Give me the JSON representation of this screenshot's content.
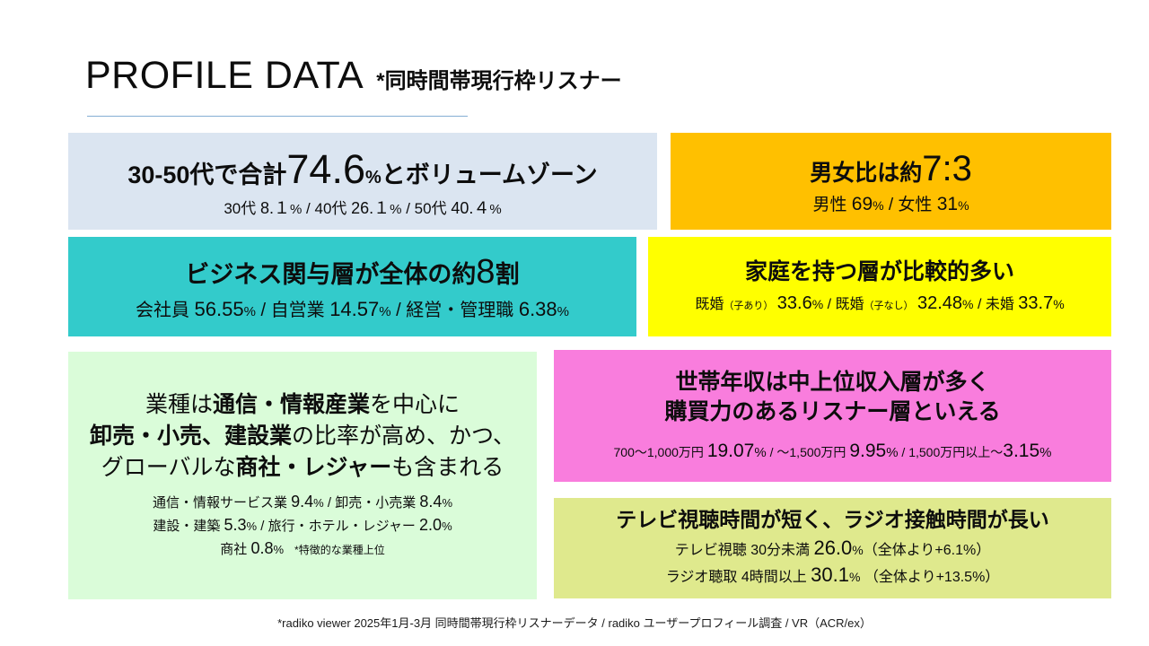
{
  "slide": {
    "title": "PROFILE DATA",
    "title_note": "*同時間帯現行枠リスナー",
    "footer": "*radiko viewer 2025年1月-3月 同時間帯現行枠リスナーデータ / radiko ユーザープロフィール調査 / VR（ACR/ex）"
  },
  "colors": {
    "age_bg": "#dbe5f1",
    "gender_bg": "#ffc000",
    "business_bg": "#33cbcb",
    "family_bg": "#ffff00",
    "industry_bg": "#dafcd9",
    "income_bg": "#f97ddd",
    "media_bg": "#dfe98d",
    "underline": "#85afd4",
    "text": "#0d0d0d"
  },
  "cards": {
    "age": {
      "pre": "30-50代で合計",
      "big": "74.6",
      "unit": "%",
      "post": "とボリュームゾーン",
      "sub": [
        {
          "t": "30代 "
        },
        {
          "t": "8.１"
        },
        {
          "t": "%"
        },
        {
          "t": " / "
        },
        {
          "t": "40代 "
        },
        {
          "t": "26.１"
        },
        {
          "t": "%"
        },
        {
          "t": " / "
        },
        {
          "t": "50代 "
        },
        {
          "t": "40.４"
        },
        {
          "t": "%"
        }
      ]
    },
    "gender": {
      "pre": "男女比は約",
      "big": "7:3",
      "sub": [
        {
          "t": "男性 "
        },
        {
          "t": "69"
        },
        {
          "t": "%"
        },
        {
          "t": " / "
        },
        {
          "t": "女性 "
        },
        {
          "t": "31"
        },
        {
          "t": "%"
        }
      ]
    },
    "business": {
      "pre": "ビジネス関与層が全体の約",
      "big": "8",
      "post": "割",
      "sub": [
        {
          "t": "会社員 "
        },
        {
          "t": "56.55"
        },
        {
          "t": "%"
        },
        {
          "t": " / "
        },
        {
          "t": "自営業 "
        },
        {
          "t": "14.57"
        },
        {
          "t": "%"
        },
        {
          "t": " / "
        },
        {
          "t": "経営・管理職 "
        },
        {
          "t": "6.38"
        },
        {
          "t": "%"
        }
      ]
    },
    "family": {
      "heading": "家庭を持つ層が比較的多い",
      "sub": [
        {
          "t": "既婚"
        },
        {
          "t": "（子あり）"
        },
        {
          "t": " "
        },
        {
          "t": "33.6"
        },
        {
          "t": "%"
        },
        {
          "t": " / "
        },
        {
          "t": "既婚"
        },
        {
          "t": "（子なし）"
        },
        {
          "t": " "
        },
        {
          "t": "32.48"
        },
        {
          "t": "%"
        },
        {
          "t": " / "
        },
        {
          "t": "未婚 "
        },
        {
          "t": "33.7"
        },
        {
          "t": "%"
        }
      ]
    },
    "industry": {
      "heading_l1": [
        {
          "t": "業種は"
        },
        {
          "t": "通信・情報産業"
        },
        {
          "t": "を中心に"
        }
      ],
      "heading_l2": [
        {
          "t": "卸売・小売、建設業"
        },
        {
          "t": "の比率が高め、かつ、"
        }
      ],
      "heading_l3": [
        {
          "t": "グローバルな"
        },
        {
          "t": "商社・レジャー"
        },
        {
          "t": "も含まれる"
        }
      ],
      "sub_l1": [
        {
          "t": "通信・情報サービス業 "
        },
        {
          "t": "9.4"
        },
        {
          "t": "%"
        },
        {
          "t": " / "
        },
        {
          "t": "卸売・小売業 "
        },
        {
          "t": "8.4"
        },
        {
          "t": "%"
        }
      ],
      "sub_l2": [
        {
          "t": "建設・建築 "
        },
        {
          "t": "5.3"
        },
        {
          "t": "%"
        },
        {
          "t": " / "
        },
        {
          "t": "旅行・ホテル・レジャー "
        },
        {
          "t": "2.0"
        },
        {
          "t": "%"
        }
      ],
      "sub_l3": [
        {
          "t": "商社 "
        },
        {
          "t": "0.8"
        },
        {
          "t": "%"
        },
        {
          "t": "　*特徴的な業種上位"
        }
      ]
    },
    "income": {
      "heading_l1": "世帯年収は中上位収入層が多く",
      "heading_l2": "購買力のあるリスナー層といえる",
      "sub": [
        {
          "t": "700～1,000万円 "
        },
        {
          "t": "19.07"
        },
        {
          "t": "%"
        },
        {
          "t": " / "
        },
        {
          "t": "～1,500万円 "
        },
        {
          "t": "9.95"
        },
        {
          "t": "%"
        },
        {
          "t": " / "
        },
        {
          "t": "1,500万円以上～"
        },
        {
          "t": "3.15"
        },
        {
          "t": "%"
        }
      ]
    },
    "media": {
      "heading": "テレビ視聴時間が短く、ラジオ接触時間が長い",
      "sub_l1": [
        {
          "t": "テレビ視聴 30分未満 "
        },
        {
          "t": "26.0"
        },
        {
          "t": "%"
        },
        {
          "t": "（全体より+6.1%）"
        }
      ],
      "sub_l2": [
        {
          "t": "ラジオ聴取 4時間以上 "
        },
        {
          "t": "30.1"
        },
        {
          "t": "%"
        },
        {
          "t": " （全体より+13.5%）"
        }
      ]
    }
  }
}
